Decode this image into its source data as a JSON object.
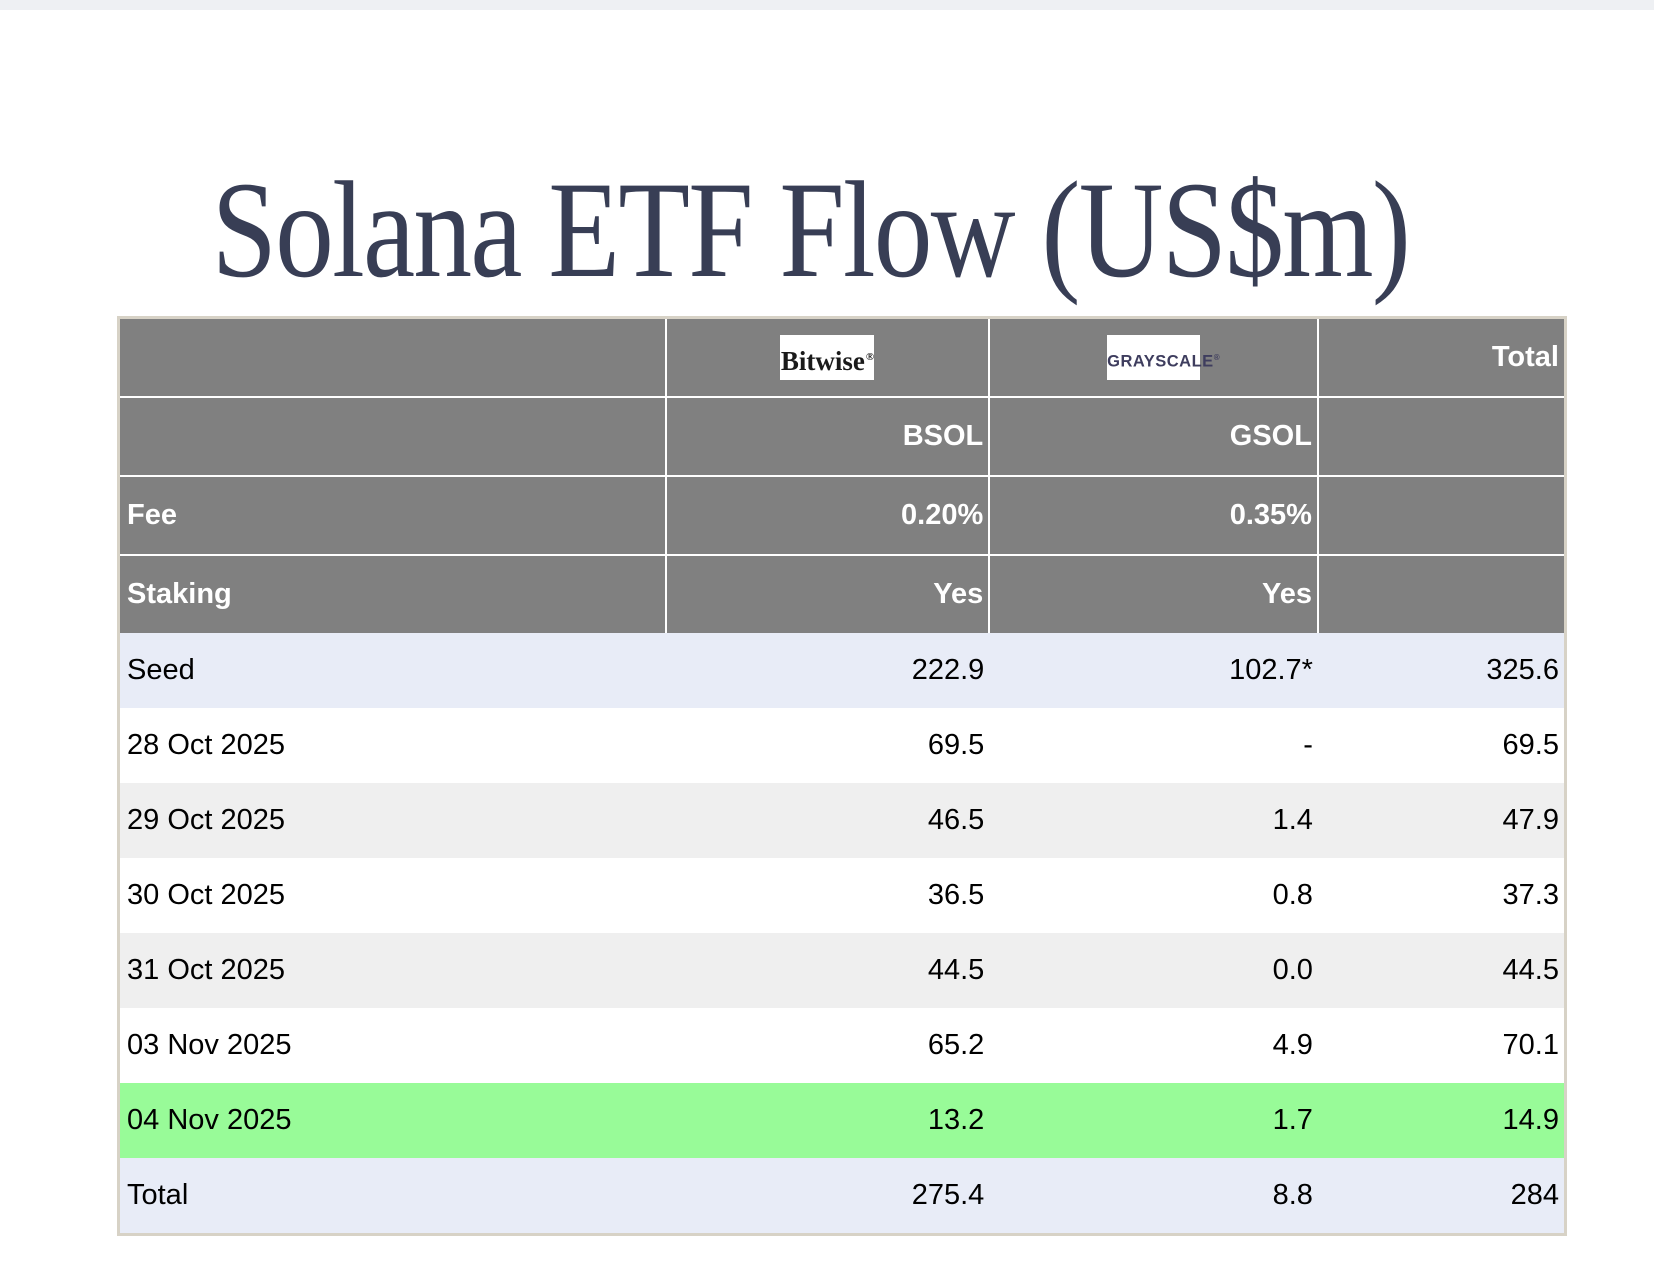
{
  "page": {
    "title": "Solana ETF Flow (US$m)"
  },
  "table": {
    "logos": {
      "bitwise": {
        "text": "Bitwise",
        "mark": "®"
      },
      "grayscale": {
        "text": "GRAYSCALE",
        "mark": "®"
      }
    },
    "header": {
      "total_label": "Total",
      "bsol_ticker": "BSOL",
      "gsol_ticker": "GSOL",
      "fee_label": "Fee",
      "fee_bsol": "0.20%",
      "fee_gsol": "0.35%",
      "staking_label": "Staking",
      "staking_bsol": "Yes",
      "staking_gsol": "Yes"
    },
    "rows": [
      {
        "label": "Seed",
        "bsol": "222.9",
        "gsol": "102.7*",
        "total": "325.6",
        "style": "lavender"
      },
      {
        "label": "28 Oct 2025",
        "bsol": "69.5",
        "gsol": "-",
        "total": "69.5",
        "style": "white"
      },
      {
        "label": "29 Oct 2025",
        "bsol": "46.5",
        "gsol": "1.4",
        "total": "47.9",
        "style": "gray"
      },
      {
        "label": "30 Oct 2025",
        "bsol": "36.5",
        "gsol": "0.8",
        "total": "37.3",
        "style": "white"
      },
      {
        "label": "31 Oct 2025",
        "bsol": "44.5",
        "gsol": "0.0",
        "total": "44.5",
        "style": "gray"
      },
      {
        "label": "03 Nov 2025",
        "bsol": "65.2",
        "gsol": "4.9",
        "total": "70.1",
        "style": "white"
      },
      {
        "label": "04 Nov 2025",
        "bsol": "13.2",
        "gsol": "1.7",
        "total": "14.9",
        "style": "green"
      },
      {
        "label": "Total",
        "bsol": "275.4",
        "gsol": "8.8",
        "total": "284",
        "style": "lavender"
      }
    ]
  },
  "colors": {
    "header_gray": "#808080",
    "row_lavender": "#e8ecf7",
    "row_gray": "#efefef",
    "row_green": "#98fb98",
    "table_border": "#d7d2c6",
    "title_navy": "#383e55",
    "grayscale_logo_navy": "#3e3d5e",
    "top_strip": "#eef0f3"
  },
  "chart_data": {
    "type": "table",
    "title": "Solana ETF Flow (US$m)",
    "columns": [
      "",
      "Bitwise (BSOL)",
      "Grayscale (GSOL)",
      "Total"
    ],
    "fees": {
      "BSOL": "0.20%",
      "GSOL": "0.35%"
    },
    "staking": {
      "BSOL": "Yes",
      "GSOL": "Yes"
    },
    "rows": [
      {
        "label": "Seed",
        "BSOL": 222.9,
        "GSOL": "102.7*",
        "Total": 325.6
      },
      {
        "label": "28 Oct 2025",
        "BSOL": 69.5,
        "GSOL": "-",
        "Total": 69.5
      },
      {
        "label": "29 Oct 2025",
        "BSOL": 46.5,
        "GSOL": 1.4,
        "Total": 47.9
      },
      {
        "label": "30 Oct 2025",
        "BSOL": 36.5,
        "GSOL": 0.8,
        "Total": 37.3
      },
      {
        "label": "31 Oct 2025",
        "BSOL": 44.5,
        "GSOL": 0.0,
        "Total": 44.5
      },
      {
        "label": "03 Nov 2025",
        "BSOL": 65.2,
        "GSOL": 4.9,
        "Total": 70.1
      },
      {
        "label": "04 Nov 2025",
        "BSOL": 13.2,
        "GSOL": 1.7,
        "Total": 14.9
      },
      {
        "label": "Total",
        "BSOL": 275.4,
        "GSOL": 8.8,
        "Total": 284
      }
    ],
    "highlighted_row": "04 Nov 2025",
    "row_band_colors": [
      "lavender",
      "white",
      "gray",
      "white",
      "gray",
      "white",
      "green",
      "lavender"
    ]
  }
}
